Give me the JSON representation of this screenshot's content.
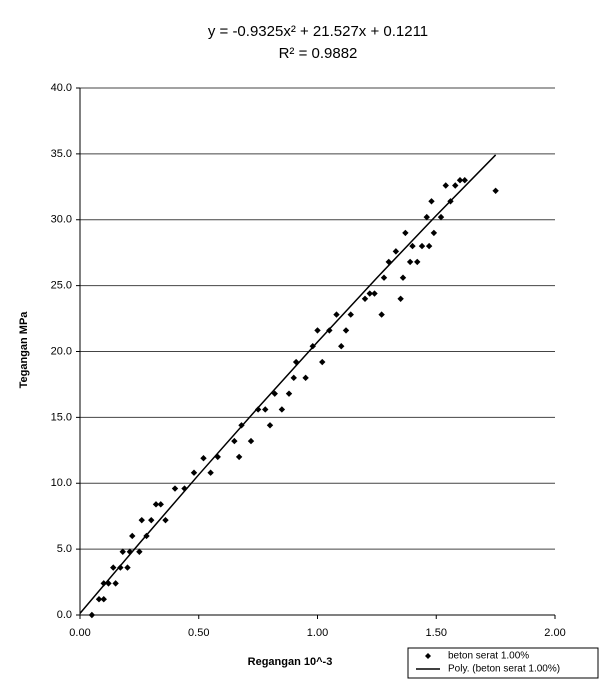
{
  "chart_data": {
    "type": "scatter",
    "title": "y = -0.9325x² + 21.527x + 0.1211",
    "subtitle": "R² = 0.9882",
    "x_label": "Regangan 10^-3",
    "y_label": "Tegangan MPa",
    "xlim": [
      0,
      2
    ],
    "ylim": [
      0,
      40
    ],
    "xticks": [
      {
        "value": 0,
        "label": "0.00"
      },
      {
        "value": 0.5,
        "label": "0.50"
      },
      {
        "value": 1,
        "label": "1.00"
      },
      {
        "value": 1.5,
        "label": "1.50"
      },
      {
        "value": 2,
        "label": "2.00"
      }
    ],
    "yticks": [
      {
        "value": 0,
        "label": "0.0"
      },
      {
        "value": 5,
        "label": "5.0"
      },
      {
        "value": 10,
        "label": "10.0"
      },
      {
        "value": 15,
        "label": "15.0"
      },
      {
        "value": 20,
        "label": "20.0"
      },
      {
        "value": 25,
        "label": "25.0"
      },
      {
        "value": 30,
        "label": "30.0"
      },
      {
        "value": 35,
        "label": "35.0"
      },
      {
        "value": 40,
        "label": "40.0"
      }
    ],
    "grid": true,
    "legend": "bottom-right",
    "series": [
      {
        "name": "beton serat 1.00%",
        "color": "#000000",
        "type": "scatter",
        "x": [
          0.05,
          0.08,
          0.1,
          0.1,
          0.12,
          0.14,
          0.15,
          0.17,
          0.18,
          0.2,
          0.21,
          0.22,
          0.25,
          0.26,
          0.28,
          0.3,
          0.32,
          0.34,
          0.36,
          0.4,
          0.44,
          0.48,
          0.52,
          0.55,
          0.58,
          0.65,
          0.67,
          0.68,
          0.72,
          0.75,
          0.78,
          0.8,
          0.82,
          0.85,
          0.88,
          0.9,
          0.91,
          0.95,
          0.98,
          1.0,
          1.02,
          1.05,
          1.08,
          1.1,
          1.12,
          1.14,
          1.2,
          1.22,
          1.24,
          1.27,
          1.28,
          1.3,
          1.33,
          1.35,
          1.36,
          1.37,
          1.39,
          1.4,
          1.42,
          1.44,
          1.46,
          1.47,
          1.48,
          1.49,
          1.52,
          1.54,
          1.56,
          1.58,
          1.6,
          1.62,
          1.75
        ],
        "values": [
          0.0,
          1.2,
          1.2,
          2.4,
          2.4,
          3.6,
          2.4,
          3.6,
          4.8,
          3.6,
          4.8,
          6.0,
          4.8,
          7.2,
          6.0,
          7.2,
          8.4,
          8.4,
          7.2,
          9.6,
          9.6,
          10.8,
          11.9,
          10.8,
          12.0,
          13.2,
          12.0,
          14.4,
          13.2,
          15.6,
          15.6,
          14.4,
          16.8,
          15.6,
          16.8,
          18.0,
          19.2,
          18.0,
          20.4,
          21.6,
          19.2,
          21.6,
          22.8,
          20.4,
          21.6,
          22.8,
          24.0,
          24.4,
          24.4,
          22.8,
          25.6,
          26.8,
          27.6,
          24.0,
          25.6,
          29.0,
          26.8,
          28.0,
          26.8,
          28.0,
          30.2,
          28.0,
          31.4,
          29.0,
          30.2,
          32.6,
          31.4,
          32.6,
          33.0,
          33.0,
          32.2
        ]
      },
      {
        "name": "Poly. (beton serat 1.00%)",
        "color": "#000000",
        "type": "line",
        "x": [
          0,
          0.25,
          0.5,
          0.75,
          1.0,
          1.25,
          1.5,
          1.75
        ],
        "values": [
          0.12,
          5.44,
          10.65,
          15.74,
          20.72,
          25.59,
          30.32,
          34.92
        ]
      }
    ]
  }
}
